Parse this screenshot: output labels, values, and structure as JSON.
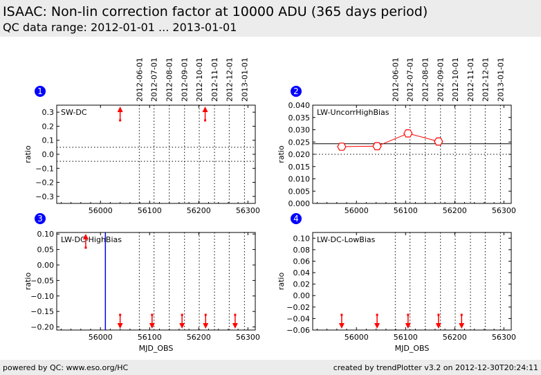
{
  "header": {
    "title": "ISAAC: Non-lin correction factor at 10000 ADU (365 days period)",
    "subtitle": "QC data range: 2012-01-01 ... 2013-01-01"
  },
  "footer": {
    "left": "powered by QC: www.eso.org/HC",
    "right": "created by trendPlotter v3.2 on 2012-12-30T20:24:11"
  },
  "colors": {
    "data": "#ff0000",
    "marker_badge": "#0000ff",
    "vline": "#0000ff"
  },
  "chart_data": [
    {
      "type": "scatter",
      "number": "1",
      "label": "SW-DC",
      "ylabel": "ratio",
      "xlabel": "",
      "xlim": [
        55911,
        56315
      ],
      "ylim": [
        -0.35,
        0.35
      ],
      "xticks": [
        "56000",
        "56100",
        "56200",
        "56300"
      ],
      "xtick_values": [
        56000,
        56100,
        56200,
        56300
      ],
      "yticks": [
        "0.3",
        "0.2",
        "0.1",
        "0.0",
        "−0.1",
        "−0.2",
        "−0.3"
      ],
      "ytick_values": [
        0.3,
        0.2,
        0.1,
        0,
        -0.1,
        -0.2,
        -0.3
      ],
      "hlines_dotted": [
        0.05,
        -0.05
      ],
      "hline_solid": null,
      "vline": null,
      "points": [],
      "offscale": [
        {
          "x": 56040,
          "dir": "up"
        },
        {
          "x": 56213,
          "dir": "up"
        }
      ],
      "date_labels": [
        "2012-06-01",
        "2012-07-01",
        "2012-08-01",
        "2012-09-01",
        "2012-10-01",
        "2012-11-01",
        "2012-12-01",
        "2013-01-01"
      ],
      "date_values": [
        56079,
        56109,
        56140,
        56171,
        56201,
        56232,
        56262,
        56293
      ]
    },
    {
      "type": "line",
      "number": "2",
      "label": "LW-UncorrHighBias",
      "ylabel": "ratio",
      "xlabel": "",
      "xlim": [
        55911,
        56315
      ],
      "ylim": [
        0,
        0.04
      ],
      "xticks": [
        "56000",
        "56100",
        "56200",
        "56300"
      ],
      "xtick_values": [
        56000,
        56100,
        56200,
        56300
      ],
      "yticks": [
        "0.040",
        "0.035",
        "0.030",
        "0.025",
        "0.020",
        "0.015",
        "0.010",
        "0.005",
        "0.000"
      ],
      "ytick_values": [
        0.04,
        0.035,
        0.03,
        0.025,
        0.02,
        0.015,
        0.01,
        0.005,
        0
      ],
      "hlines_dotted": [
        0.02
      ],
      "hline_solid": 0.0243,
      "vline": null,
      "points": [
        {
          "x": 55970,
          "y": 0.0231
        },
        {
          "x": 56042,
          "y": 0.0233
        },
        {
          "x": 56105,
          "y": 0.0285
        },
        {
          "x": 56167,
          "y": 0.0252
        }
      ],
      "offscale": [],
      "date_labels": [
        "2012-06-01",
        "2012-07-01",
        "2012-08-01",
        "2012-09-01",
        "2012-10-01",
        "2012-11-01",
        "2012-12-01",
        "2013-01-01"
      ],
      "date_values": [
        56079,
        56109,
        56140,
        56171,
        56201,
        56232,
        56262,
        56293
      ]
    },
    {
      "type": "scatter",
      "number": "3",
      "label": "LW-DC-HighBias",
      "ylabel": "ratio",
      "xlabel": "MJD_OBS",
      "xlim": [
        55911,
        56315
      ],
      "ylim": [
        -0.21,
        0.105
      ],
      "xticks": [
        "56000",
        "56100",
        "56200",
        "56300"
      ],
      "xtick_values": [
        56000,
        56100,
        56200,
        56300
      ],
      "yticks": [
        "0.10",
        "0.05",
        "0.00",
        "−0.05",
        "−0.10",
        "−0.15",
        "−0.20"
      ],
      "ytick_values": [
        0.1,
        0.05,
        0,
        -0.05,
        -0.1,
        -0.15,
        -0.2
      ],
      "hlines_dotted": [],
      "hline_solid": null,
      "vline": 56010,
      "points": [],
      "offscale": [
        {
          "x": 55970,
          "dir": "up"
        },
        {
          "x": 56040,
          "dir": "down"
        },
        {
          "x": 56105,
          "dir": "down"
        },
        {
          "x": 56166,
          "dir": "down"
        },
        {
          "x": 56214,
          "dir": "down"
        },
        {
          "x": 56274,
          "dir": "down"
        }
      ],
      "date_labels": [],
      "date_values": [
        56079,
        56109,
        56140,
        56171,
        56201,
        56232,
        56262,
        56293
      ]
    },
    {
      "type": "scatter",
      "number": "4",
      "label": "LW-DC-LowBias",
      "ylabel": "ratio",
      "xlabel": "MJD_OBS",
      "xlim": [
        55911,
        56315
      ],
      "ylim": [
        -0.06,
        0.11
      ],
      "xticks": [
        "56000",
        "56100",
        "56200",
        "56300"
      ],
      "xtick_values": [
        56000,
        56100,
        56200,
        56300
      ],
      "yticks": [
        "0.10",
        "0.08",
        "0.06",
        "0.04",
        "0.02",
        "0.00",
        "−0.02",
        "−0.04",
        "−0.06"
      ],
      "ytick_values": [
        0.1,
        0.08,
        0.06,
        0.04,
        0.02,
        0,
        -0.02,
        -0.04,
        -0.06
      ],
      "hlines_dotted": [],
      "hline_solid": null,
      "vline": null,
      "points": [],
      "offscale": [
        {
          "x": 55970,
          "dir": "down"
        },
        {
          "x": 56042,
          "dir": "down"
        },
        {
          "x": 56105,
          "dir": "down"
        },
        {
          "x": 56167,
          "dir": "down"
        },
        {
          "x": 56214,
          "dir": "down"
        }
      ],
      "date_labels": [],
      "date_values": [
        56079,
        56109,
        56140,
        56171,
        56201,
        56232,
        56262,
        56293
      ]
    }
  ]
}
